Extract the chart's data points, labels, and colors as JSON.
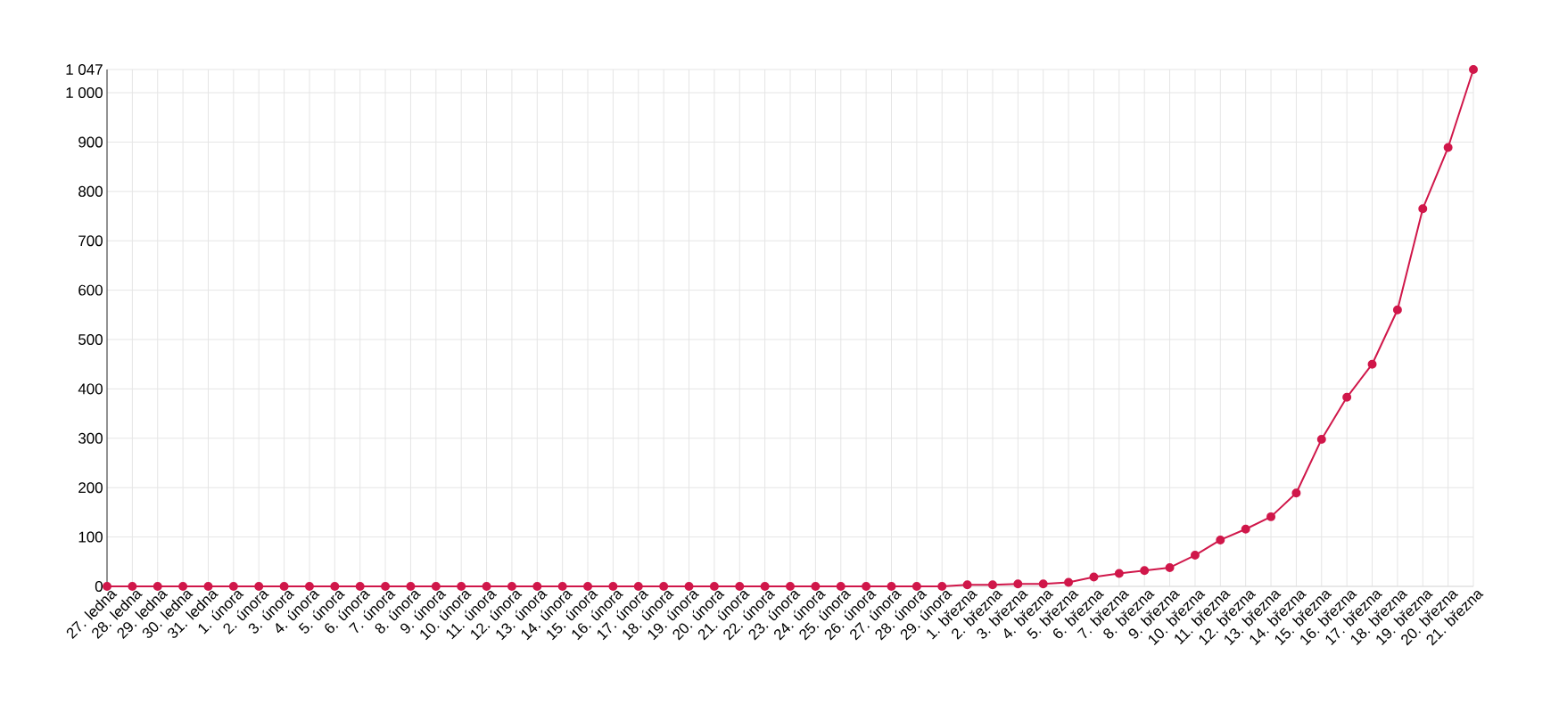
{
  "chart_data": {
    "type": "line",
    "categories": [
      "27. ledna",
      "28. ledna",
      "29. ledna",
      "30. ledna",
      "31. ledna",
      "1. února",
      "2. února",
      "3. února",
      "4. února",
      "5. února",
      "6. února",
      "7. února",
      "8. února",
      "9. února",
      "10. února",
      "11. února",
      "12. února",
      "13. února",
      "14. února",
      "15. února",
      "16. února",
      "17. února",
      "18. února",
      "19. února",
      "20. února",
      "21. února",
      "22. února",
      "23. února",
      "24. února",
      "25. února",
      "26. února",
      "27. února",
      "28. února",
      "29. února",
      "1. března",
      "2. března",
      "3. března",
      "4. března",
      "5. března",
      "6. března",
      "7. března",
      "8. března",
      "9. března",
      "10. března",
      "11. března",
      "12. března",
      "13. března",
      "14. března",
      "15. března",
      "16. března",
      "17. března",
      "18. března",
      "19. března",
      "20. března",
      "21. března"
    ],
    "values": [
      0,
      0,
      0,
      0,
      0,
      0,
      0,
      0,
      0,
      0,
      0,
      0,
      0,
      0,
      0,
      0,
      0,
      0,
      0,
      0,
      0,
      0,
      0,
      0,
      0,
      0,
      0,
      0,
      0,
      0,
      0,
      0,
      0,
      0,
      3,
      3,
      5,
      5,
      8,
      19,
      26,
      32,
      38,
      63,
      94,
      116,
      141,
      189,
      298,
      383,
      450,
      560,
      765,
      889,
      1047
    ],
    "color": "#d0174a",
    "marker": "circle",
    "grid": true,
    "ylim": [
      0,
      1047
    ],
    "yticks": [
      0,
      {
        "value": 100,
        "label": "100"
      },
      {
        "value": 200,
        "label": "200"
      },
      {
        "value": 300,
        "label": "300"
      },
      {
        "value": 400,
        "label": "400"
      },
      {
        "value": 500,
        "label": "500"
      },
      {
        "value": 600,
        "label": "600"
      },
      {
        "value": 700,
        "label": "700"
      },
      {
        "value": 800,
        "label": "800"
      },
      {
        "value": 900,
        "label": "900"
      },
      {
        "value": 1000,
        "label": "1 000"
      },
      {
        "value": 1047,
        "label": "1 047"
      }
    ]
  }
}
